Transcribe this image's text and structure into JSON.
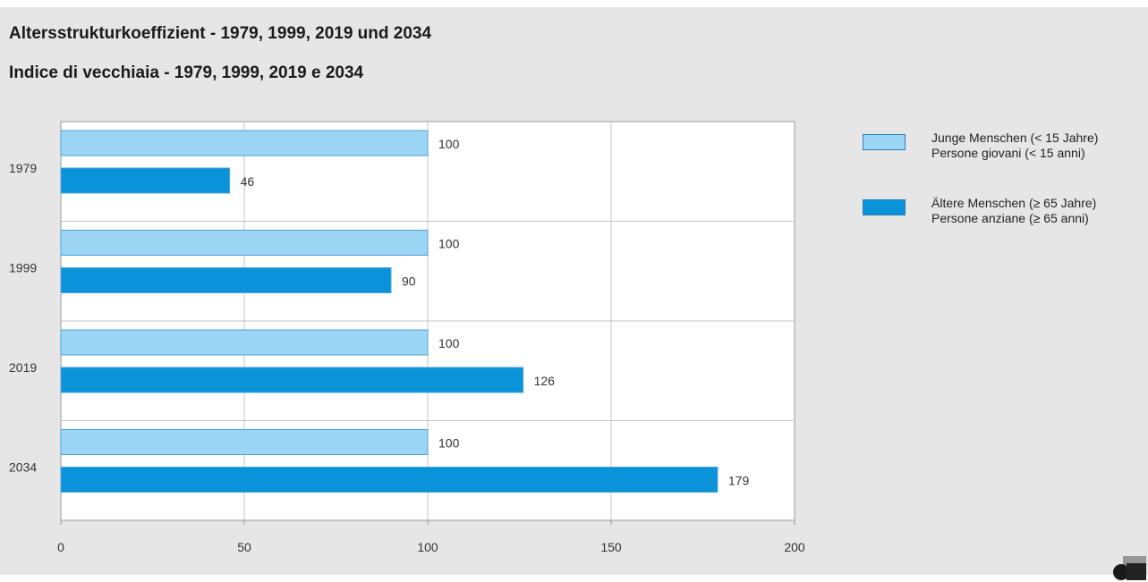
{
  "titles": {
    "de": "Altersstrukturkoeffizient - 1979, 1999, 2019 und 2034",
    "it": "Indice di vecchiaia - 1979, 1999, 2019 e 2034"
  },
  "legend": [
    {
      "line1": "Junge Menschen (< 15 Jahre)",
      "line2": "Persone giovani (< 15 anni)",
      "color": "#9dd6f5"
    },
    {
      "line1": "Ältere Menschen (≥ 65 Jahre)",
      "line2": "Persone anziane (≥ 65 anni)",
      "color": "#0a93d9"
    }
  ],
  "chart_data": {
    "type": "bar",
    "orientation": "horizontal",
    "title": "Altersstrukturkoeffizient - 1979, 1999, 2019 und 2034",
    "subtitle": "Indice di vecchiaia - 1979, 1999, 2019 e 2034",
    "categories": [
      "1979",
      "1999",
      "2019",
      "2034"
    ],
    "series": [
      {
        "name": "Junge Menschen (< 15 Jahre) / Persone giovani (< 15 anni)",
        "values": [
          100,
          100,
          100,
          100
        ],
        "color": "#9dd6f5"
      },
      {
        "name": "Ältere Menschen (≥ 65 Jahre) / Persone anziane (≥ 65 anni)",
        "values": [
          46,
          90,
          126,
          179
        ],
        "color": "#0a93d9"
      }
    ],
    "xlim": [
      0,
      200
    ],
    "xticks": [
      0,
      50,
      100,
      150,
      200
    ],
    "grid": true,
    "legend_position": "right",
    "data_labels": true
  }
}
